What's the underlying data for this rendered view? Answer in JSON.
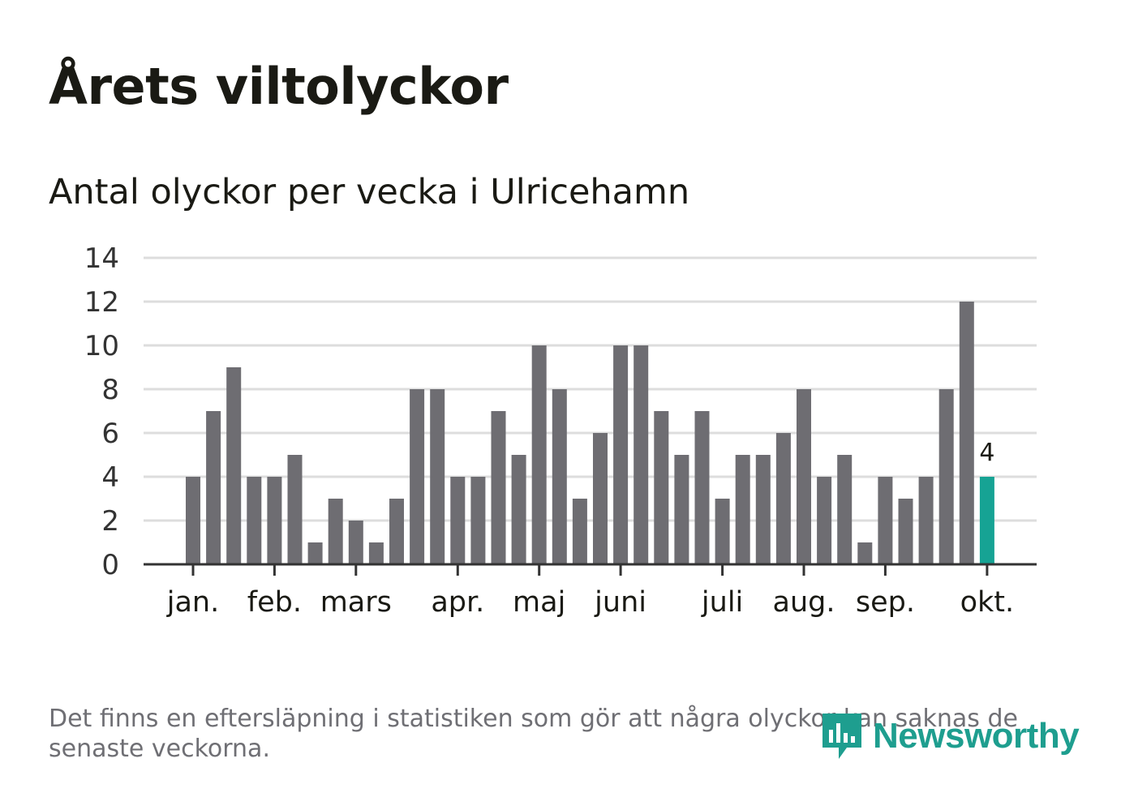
{
  "header": {
    "title": "Årets viltolyckor",
    "subtitle": "Antal olyckor per vecka i Ulricehamn"
  },
  "footer": {
    "note": "Det finns en eftersläpning i statistiken som gör att några olyckor kan saknas de senaste veckorna.",
    "brand": "Newsworthy"
  },
  "chart_data": {
    "type": "bar",
    "title": "Antal olyckor per vecka i Ulricehamn",
    "xlabel": "",
    "ylabel": "",
    "ylim": [
      0,
      14
    ],
    "yticks": [
      0,
      2,
      4,
      6,
      8,
      10,
      12,
      14
    ],
    "grid": true,
    "month_labels": [
      {
        "label": "jan.",
        "week_index": 0
      },
      {
        "label": "feb.",
        "week_index": 4
      },
      {
        "label": "mars",
        "week_index": 8
      },
      {
        "label": "apr.",
        "week_index": 13
      },
      {
        "label": "maj",
        "week_index": 17
      },
      {
        "label": "juni",
        "week_index": 21
      },
      {
        "label": "juli",
        "week_index": 26
      },
      {
        "label": "aug.",
        "week_index": 30
      },
      {
        "label": "sep.",
        "week_index": 34
      },
      {
        "label": "okt.",
        "week_index": 39
      }
    ],
    "values": [
      4,
      7,
      9,
      4,
      4,
      5,
      1,
      3,
      2,
      1,
      3,
      8,
      8,
      4,
      4,
      7,
      5,
      10,
      8,
      3,
      6,
      10,
      10,
      7,
      5,
      7,
      3,
      5,
      5,
      6,
      8,
      4,
      5,
      1,
      4,
      3,
      4,
      8,
      12,
      4
    ],
    "highlight_index": 39,
    "highlight_label": "4",
    "colors": {
      "bar": "#6e6d72",
      "highlight": "#16a394",
      "grid": "#dddddd",
      "axis": "#333333"
    }
  }
}
